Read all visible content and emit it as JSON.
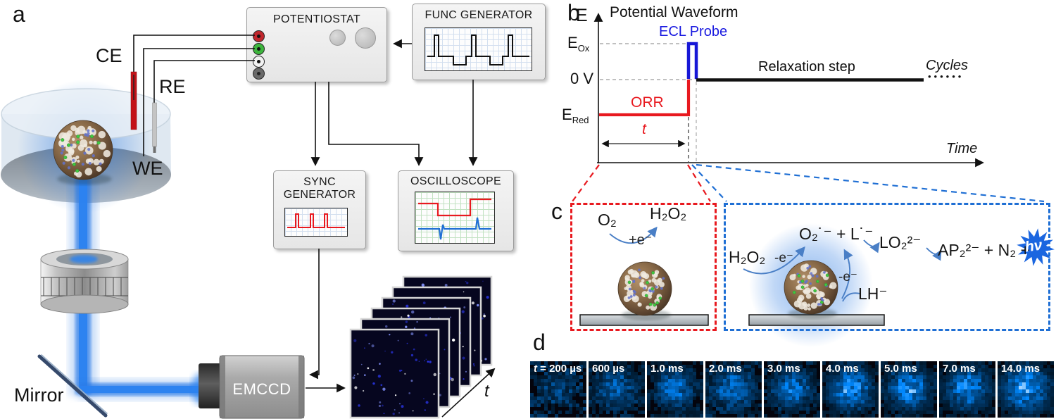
{
  "panel_letters": {
    "a": "a",
    "b": "b",
    "c": "c",
    "d": "d"
  },
  "setup": {
    "ce": "CE",
    "re": "RE",
    "we": "WE",
    "mirror": "Mirror",
    "camera": "EMCCD",
    "stack_axis": "t",
    "potentiostat": "POTENTIOSTAT",
    "func_generator": "FUNC GENERATOR",
    "sync_line1": "SYNC",
    "sync_line2": "GENERATOR",
    "oscilloscope": "OSCILLOSCOPE"
  },
  "waveform": {
    "title": "Potential Waveform",
    "y_label": "E",
    "x_label": "Time",
    "e_ox_main": "E",
    "e_ox_sub": "Ox",
    "zero": "0 V",
    "e_red_main": "E",
    "e_red_sub": "Red",
    "orr": "ORR",
    "ecl_probe": "ECL Probe",
    "relaxation": "Relaxation step",
    "cycles": "Cycles",
    "cycle_dots": "••••••",
    "pulse_t": "t"
  },
  "mechanism": {
    "o2": "O₂",
    "h2o2": "H₂O₂",
    "plus_e": "+e⁻",
    "h2o2_2": "H₂O₂",
    "minus_e": "-e⁻",
    "radicals": "O₂˙⁻ + L˙⁻",
    "lo2": "LO₂²⁻",
    "products": "AP₂²⁻ + N₂ +",
    "hv": "hν",
    "minus_e2": "-e⁻",
    "lh": "LH⁻"
  },
  "frames": {
    "lead_italic": "t",
    "items": [
      {
        "lead": true,
        "label": " = 200 µs"
      },
      {
        "label": "600 µs"
      },
      {
        "label": "1.0 ms"
      },
      {
        "label": "2.0 ms"
      },
      {
        "label": "3.0 ms"
      },
      {
        "label": "4.0 ms"
      },
      {
        "label": "5.0 ms"
      },
      {
        "label": "7.0 ms"
      },
      {
        "label": "14.0 ms"
      }
    ]
  },
  "colors": {
    "red": "#e8191f",
    "waveform_blue": "#1717d6",
    "ecl_text_blue": "#1a1ae0",
    "box_blue": "#1f6fd4",
    "glow_blue": "#2f7ce2"
  }
}
